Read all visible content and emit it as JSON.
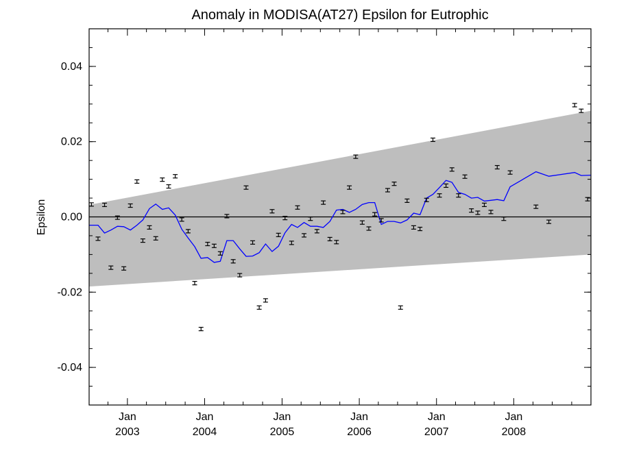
{
  "chart_data": {
    "type": "line",
    "title": "Anomaly in MODISA(AT27) Epsilon for Eutrophic",
    "xlabel": "",
    "ylabel": "Epsilon",
    "xlim": [
      "2002-07-04",
      "2008-12-31"
    ],
    "ylim": [
      -0.05,
      0.05
    ],
    "y_ticks": [
      {
        "value": -0.04,
        "label": "-0.04"
      },
      {
        "value": -0.02,
        "label": "-0.02"
      },
      {
        "value": 0.0,
        "label": "0.00"
      },
      {
        "value": 0.02,
        "label": "0.02"
      },
      {
        "value": 0.04,
        "label": "0.04"
      }
    ],
    "x_ticks": [
      {
        "date": "2003-01-01",
        "month_label": "Jan",
        "year_label": "2003"
      },
      {
        "date": "2004-01-01",
        "month_label": "Jan",
        "year_label": "2004"
      },
      {
        "date": "2005-01-01",
        "month_label": "Jan",
        "year_label": "2005"
      },
      {
        "date": "2006-01-01",
        "month_label": "Jan",
        "year_label": "2006"
      },
      {
        "date": "2007-01-01",
        "month_label": "Jan",
        "year_label": "2007"
      },
      {
        "date": "2008-01-01",
        "month_label": "Jan",
        "year_label": "2008"
      }
    ],
    "grid": false,
    "legend": "none",
    "band": {
      "color": "#bebebe",
      "x": [
        "2002-07-04",
        "2008-12-31"
      ],
      "lower": [
        -0.0185,
        -0.01
      ],
      "upper": [
        0.0032,
        0.0282
      ]
    },
    "zero_line": 0.0,
    "series": [
      {
        "kind": "errorbar_points",
        "color": "#000000",
        "points": [
          {
            "x": "2002-07-15",
            "y": 0.0033,
            "err": 0.0003
          },
          {
            "x": "2002-08-15",
            "y": -0.0058,
            "err": 0.0003
          },
          {
            "x": "2002-09-15",
            "y": 0.0032,
            "err": 0.0003
          },
          {
            "x": "2002-10-15",
            "y": -0.0135,
            "err": 0.0003
          },
          {
            "x": "2002-11-15",
            "y": -0.0002,
            "err": 0.0003
          },
          {
            "x": "2002-12-15",
            "y": -0.0137,
            "err": 0.0003
          },
          {
            "x": "2003-01-15",
            "y": 0.003,
            "err": 0.0003
          },
          {
            "x": "2003-02-15",
            "y": 0.0094,
            "err": 0.0003
          },
          {
            "x": "2003-03-15",
            "y": -0.0063,
            "err": 0.0003
          },
          {
            "x": "2003-04-15",
            "y": -0.0028,
            "err": 0.0003
          },
          {
            "x": "2003-05-15",
            "y": -0.0057,
            "err": 0.0003
          },
          {
            "x": "2003-06-15",
            "y": 0.0099,
            "err": 0.0003
          },
          {
            "x": "2003-07-15",
            "y": 0.0081,
            "err": 0.0003
          },
          {
            "x": "2003-08-15",
            "y": 0.0108,
            "err": 0.0003
          },
          {
            "x": "2003-09-15",
            "y": -0.0007,
            "err": 0.0003
          },
          {
            "x": "2003-10-15",
            "y": -0.0038,
            "err": 0.0003
          },
          {
            "x": "2003-11-15",
            "y": -0.0176,
            "err": 0.0003
          },
          {
            "x": "2003-12-15",
            "y": -0.0298,
            "err": 0.0004
          },
          {
            "x": "2004-01-15",
            "y": -0.0072,
            "err": 0.0003
          },
          {
            "x": "2004-02-15",
            "y": -0.0077,
            "err": 0.0003
          },
          {
            "x": "2004-03-15",
            "y": -0.0097,
            "err": 0.0003
          },
          {
            "x": "2004-04-15",
            "y": 0.0002,
            "err": 0.0003
          },
          {
            "x": "2004-05-15",
            "y": -0.0118,
            "err": 0.0003
          },
          {
            "x": "2004-06-15",
            "y": -0.0155,
            "err": 0.0003
          },
          {
            "x": "2004-07-15",
            "y": 0.0078,
            "err": 0.0003
          },
          {
            "x": "2004-08-15",
            "y": -0.0068,
            "err": 0.0003
          },
          {
            "x": "2004-09-15",
            "y": -0.0241,
            "err": 0.0003
          },
          {
            "x": "2004-10-15",
            "y": -0.0222,
            "err": 0.0003
          },
          {
            "x": "2004-11-15",
            "y": 0.0015,
            "err": 0.0003
          },
          {
            "x": "2004-12-15",
            "y": -0.0048,
            "err": 0.0003
          },
          {
            "x": "2005-01-15",
            "y": -0.0003,
            "err": 0.0003
          },
          {
            "x": "2005-02-15",
            "y": -0.0069,
            "err": 0.0003
          },
          {
            "x": "2005-03-15",
            "y": 0.0025,
            "err": 0.0003
          },
          {
            "x": "2005-04-15",
            "y": -0.0049,
            "err": 0.0003
          },
          {
            "x": "2005-05-15",
            "y": -0.0005,
            "err": 0.0003
          },
          {
            "x": "2005-06-15",
            "y": -0.0038,
            "err": 0.0003
          },
          {
            "x": "2005-07-15",
            "y": 0.0038,
            "err": 0.0003
          },
          {
            "x": "2005-08-15",
            "y": -0.0059,
            "err": 0.0003
          },
          {
            "x": "2005-09-15",
            "y": -0.0067,
            "err": 0.0003
          },
          {
            "x": "2005-10-15",
            "y": 0.0013,
            "err": 0.0003
          },
          {
            "x": "2005-11-15",
            "y": 0.0078,
            "err": 0.0003
          },
          {
            "x": "2005-12-15",
            "y": 0.016,
            "err": 0.0003
          },
          {
            "x": "2006-01-15",
            "y": -0.0015,
            "err": 0.0003
          },
          {
            "x": "2006-02-15",
            "y": -0.0031,
            "err": 0.0003
          },
          {
            "x": "2006-03-15",
            "y": 0.0007,
            "err": 0.0003
          },
          {
            "x": "2006-04-15",
            "y": -0.0009,
            "err": 0.0003
          },
          {
            "x": "2006-05-15",
            "y": 0.0071,
            "err": 0.0003
          },
          {
            "x": "2006-06-15",
            "y": 0.0088,
            "err": 0.0003
          },
          {
            "x": "2006-07-15",
            "y": -0.0241,
            "err": 0.0003
          },
          {
            "x": "2006-08-15",
            "y": 0.0043,
            "err": 0.0003
          },
          {
            "x": "2006-09-15",
            "y": -0.0028,
            "err": 0.0003
          },
          {
            "x": "2006-10-15",
            "y": -0.0032,
            "err": 0.0003
          },
          {
            "x": "2006-11-15",
            "y": 0.0045,
            "err": 0.0003
          },
          {
            "x": "2006-12-15",
            "y": 0.0205,
            "err": 0.0003
          },
          {
            "x": "2007-01-15",
            "y": 0.0057,
            "err": 0.0003
          },
          {
            "x": "2007-02-15",
            "y": 0.0083,
            "err": 0.0003
          },
          {
            "x": "2007-03-15",
            "y": 0.0126,
            "err": 0.0003
          },
          {
            "x": "2007-04-15",
            "y": 0.0057,
            "err": 0.0003
          },
          {
            "x": "2007-05-15",
            "y": 0.0107,
            "err": 0.0003
          },
          {
            "x": "2007-06-15",
            "y": 0.0017,
            "err": 0.0003
          },
          {
            "x": "2007-07-15",
            "y": 0.0011,
            "err": 0.0003
          },
          {
            "x": "2007-08-15",
            "y": 0.0032,
            "err": 0.0003
          },
          {
            "x": "2007-09-15",
            "y": 0.0013,
            "err": 0.0003
          },
          {
            "x": "2007-10-15",
            "y": 0.0132,
            "err": 0.0003
          },
          {
            "x": "2007-11-15",
            "y": -0.0005,
            "err": 0.0003
          },
          {
            "x": "2007-12-15",
            "y": 0.0118,
            "err": 0.0003
          },
          {
            "x": "2008-04-15",
            "y": 0.0027,
            "err": 0.0003
          },
          {
            "x": "2008-06-15",
            "y": -0.0013,
            "err": 0.0003
          },
          {
            "x": "2008-10-15",
            "y": 0.0297,
            "err": 0.0003
          },
          {
            "x": "2008-11-15",
            "y": 0.0282,
            "err": 0.0003
          },
          {
            "x": "2008-12-15",
            "y": 0.0047,
            "err": 0.0003
          }
        ]
      },
      {
        "kind": "line",
        "color": "#0000ff",
        "points": [
          {
            "x": "2002-07-04",
            "y": -0.0022
          },
          {
            "x": "2002-08-15",
            "y": -0.0022
          },
          {
            "x": "2002-09-15",
            "y": -0.0043
          },
          {
            "x": "2002-10-15",
            "y": -0.0035
          },
          {
            "x": "2002-11-15",
            "y": -0.0025
          },
          {
            "x": "2002-12-15",
            "y": -0.0026
          },
          {
            "x": "2003-01-15",
            "y": -0.0035
          },
          {
            "x": "2003-02-15",
            "y": -0.0022
          },
          {
            "x": "2003-03-15",
            "y": -0.0008
          },
          {
            "x": "2003-04-15",
            "y": 0.0022
          },
          {
            "x": "2003-05-15",
            "y": 0.0034
          },
          {
            "x": "2003-06-15",
            "y": 0.002
          },
          {
            "x": "2003-07-15",
            "y": 0.0024
          },
          {
            "x": "2003-08-15",
            "y": 0.0005
          },
          {
            "x": "2003-09-15",
            "y": -0.0033
          },
          {
            "x": "2003-10-15",
            "y": -0.0056
          },
          {
            "x": "2003-11-15",
            "y": -0.0079
          },
          {
            "x": "2003-12-15",
            "y": -0.011
          },
          {
            "x": "2004-01-15",
            "y": -0.0108
          },
          {
            "x": "2004-02-15",
            "y": -0.0121
          },
          {
            "x": "2004-03-15",
            "y": -0.0118
          },
          {
            "x": "2004-04-15",
            "y": -0.0063
          },
          {
            "x": "2004-05-15",
            "y": -0.0063
          },
          {
            "x": "2004-06-15",
            "y": -0.0085
          },
          {
            "x": "2004-07-15",
            "y": -0.0105
          },
          {
            "x": "2004-08-15",
            "y": -0.0104
          },
          {
            "x": "2004-09-15",
            "y": -0.0095
          },
          {
            "x": "2004-10-15",
            "y": -0.0072
          },
          {
            "x": "2004-11-15",
            "y": -0.0092
          },
          {
            "x": "2004-12-15",
            "y": -0.0078
          },
          {
            "x": "2005-01-15",
            "y": -0.0042
          },
          {
            "x": "2005-02-15",
            "y": -0.002
          },
          {
            "x": "2005-03-15",
            "y": -0.0028
          },
          {
            "x": "2005-04-15",
            "y": -0.0015
          },
          {
            "x": "2005-05-15",
            "y": -0.0025
          },
          {
            "x": "2005-06-15",
            "y": -0.0025
          },
          {
            "x": "2005-07-15",
            "y": -0.0028
          },
          {
            "x": "2005-08-15",
            "y": -0.0012
          },
          {
            "x": "2005-09-15",
            "y": 0.0018
          },
          {
            "x": "2005-10-15",
            "y": 0.002
          },
          {
            "x": "2005-11-15",
            "y": 0.0012
          },
          {
            "x": "2005-12-15",
            "y": 0.002
          },
          {
            "x": "2006-01-15",
            "y": 0.0033
          },
          {
            "x": "2006-02-15",
            "y": 0.0038
          },
          {
            "x": "2006-03-15",
            "y": 0.0038
          },
          {
            "x": "2006-04-15",
            "y": -0.002
          },
          {
            "x": "2006-05-15",
            "y": -0.0012
          },
          {
            "x": "2006-06-15",
            "y": -0.0012
          },
          {
            "x": "2006-07-15",
            "y": -0.0016
          },
          {
            "x": "2006-08-15",
            "y": -0.0008
          },
          {
            "x": "2006-09-15",
            "y": 0.001
          },
          {
            "x": "2006-10-15",
            "y": 0.0006
          },
          {
            "x": "2006-11-15",
            "y": 0.005
          },
          {
            "x": "2006-12-15",
            "y": 0.006
          },
          {
            "x": "2007-01-15",
            "y": 0.0078
          },
          {
            "x": "2007-02-15",
            "y": 0.0097
          },
          {
            "x": "2007-03-15",
            "y": 0.0092
          },
          {
            "x": "2007-04-15",
            "y": 0.0065
          },
          {
            "x": "2007-05-15",
            "y": 0.006
          },
          {
            "x": "2007-06-15",
            "y": 0.005
          },
          {
            "x": "2007-07-15",
            "y": 0.0052
          },
          {
            "x": "2007-08-15",
            "y": 0.0042
          },
          {
            "x": "2007-09-15",
            "y": 0.0044
          },
          {
            "x": "2007-10-15",
            "y": 0.0046
          },
          {
            "x": "2007-11-15",
            "y": 0.0043
          },
          {
            "x": "2007-12-15",
            "y": 0.008
          },
          {
            "x": "2008-04-15",
            "y": 0.012
          },
          {
            "x": "2008-06-15",
            "y": 0.0108
          },
          {
            "x": "2008-10-15",
            "y": 0.0118
          },
          {
            "x": "2008-11-15",
            "y": 0.011
          },
          {
            "x": "2008-12-31",
            "y": 0.0111
          }
        ]
      }
    ]
  }
}
